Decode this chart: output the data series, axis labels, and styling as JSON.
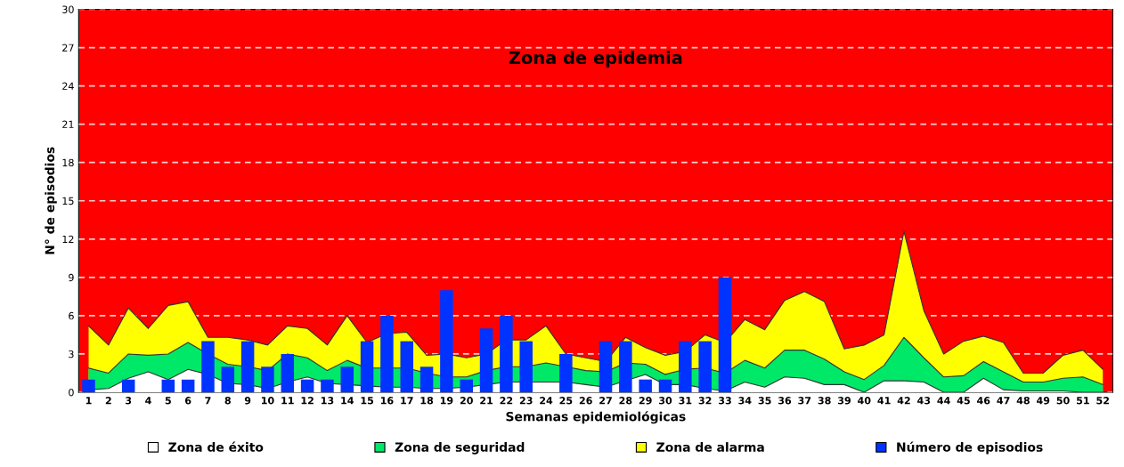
{
  "chart_data": {
    "type": "bar",
    "xlabel": "Semanas epidemiológicas",
    "ylabel": "N° de episodios",
    "categories": [
      "1",
      "2",
      "3",
      "4",
      "5",
      "6",
      "7",
      "8",
      "9",
      "10",
      "11",
      "12",
      "13",
      "14",
      "15",
      "16",
      "17",
      "18",
      "19",
      "20",
      "21",
      "22",
      "23",
      "24",
      "25",
      "26",
      "27",
      "28",
      "29",
      "30",
      "31",
      "32",
      "33",
      "34",
      "35",
      "36",
      "37",
      "38",
      "39",
      "40",
      "41",
      "42",
      "43",
      "44",
      "45",
      "46",
      "47",
      "48",
      "49",
      "50",
      "51",
      "52"
    ],
    "series": [
      {
        "name": "Zona de éxito",
        "type": "area",
        "color": "#ffffff",
        "values": [
          0.2,
          0.3,
          1.1,
          1.6,
          1.0,
          1.8,
          1.4,
          0.7,
          0.6,
          0.3,
          0.8,
          1.2,
          0.7,
          0.6,
          0.5,
          0.4,
          0.4,
          0.3,
          0.3,
          0.4,
          0.6,
          0.8,
          0.8,
          0.8,
          0.8,
          0.6,
          0.4,
          0.9,
          1.4,
          0.6,
          0.6,
          0.3,
          0.1,
          0.8,
          0.4,
          1.2,
          1.1,
          0.6,
          0.6,
          0,
          0.9,
          0.9,
          0.8,
          0,
          0,
          1.1,
          0.2,
          0.1,
          0.1,
          0.1,
          0,
          0
        ]
      },
      {
        "name": "Zona de seguridad",
        "type": "area",
        "color": "#00e868",
        "values": [
          1.9,
          1.5,
          3.0,
          2.9,
          3.0,
          3.9,
          3.0,
          2.2,
          2.0,
          1.7,
          3.0,
          2.7,
          1.7,
          2.5,
          1.9,
          1.9,
          1.9,
          1.5,
          1.2,
          1.2,
          1.7,
          2.0,
          2.0,
          2.3,
          2.0,
          1.7,
          1.6,
          2.3,
          2.2,
          1.4,
          1.8,
          1.9,
          1.5,
          2.5,
          1.9,
          3.3,
          3.3,
          2.6,
          1.6,
          1.0,
          2.1,
          4.3,
          2.7,
          1.2,
          1.3,
          2.4,
          1.6,
          0.8,
          0.8,
          1.1,
          1.2,
          0.6
        ]
      },
      {
        "name": "Zona de alarma",
        "type": "area",
        "color": "#ffff00",
        "values": [
          5.2,
          3.7,
          6.6,
          5.0,
          6.8,
          7.1,
          4.3,
          4.3,
          4.1,
          3.7,
          5.2,
          5.0,
          3.7,
          6.0,
          3.9,
          4.6,
          4.7,
          2.9,
          3.0,
          2.7,
          3.0,
          4.1,
          4.1,
          5.2,
          3.0,
          2.7,
          2.4,
          4.3,
          3.5,
          2.9,
          3.2,
          4.5,
          3.9,
          5.7,
          4.9,
          7.2,
          7.9,
          7.1,
          3.4,
          3.7,
          4.5,
          12.6,
          6.4,
          3.0,
          4.0,
          4.4,
          3.9,
          1.5,
          1.5,
          2.9,
          3.3,
          1.8
        ]
      },
      {
        "name": "Número de episodios",
        "color": "#0033ff",
        "values": [
          1,
          0,
          1,
          0,
          1,
          1,
          4,
          2,
          4,
          2,
          3,
          1,
          1,
          2,
          4,
          6,
          4,
          2,
          8,
          1,
          5,
          6,
          4,
          0,
          3,
          0,
          4,
          4,
          1,
          1,
          4,
          4,
          9,
          0,
          0,
          0,
          0,
          0,
          0,
          0,
          0,
          0,
          0,
          0,
          0,
          0,
          0,
          0,
          0,
          0,
          0,
          0
        ]
      }
    ],
    "bands": [
      {
        "axis": "y",
        "from": 0,
        "to": 30,
        "label": "Zona de epidemia",
        "color": "#ff0000"
      }
    ],
    "ylim": [
      0,
      30
    ],
    "yticks": [
      0,
      3,
      6,
      9,
      12,
      15,
      18,
      21,
      24,
      27,
      30
    ],
    "grid": "y",
    "legend": "bottom"
  }
}
